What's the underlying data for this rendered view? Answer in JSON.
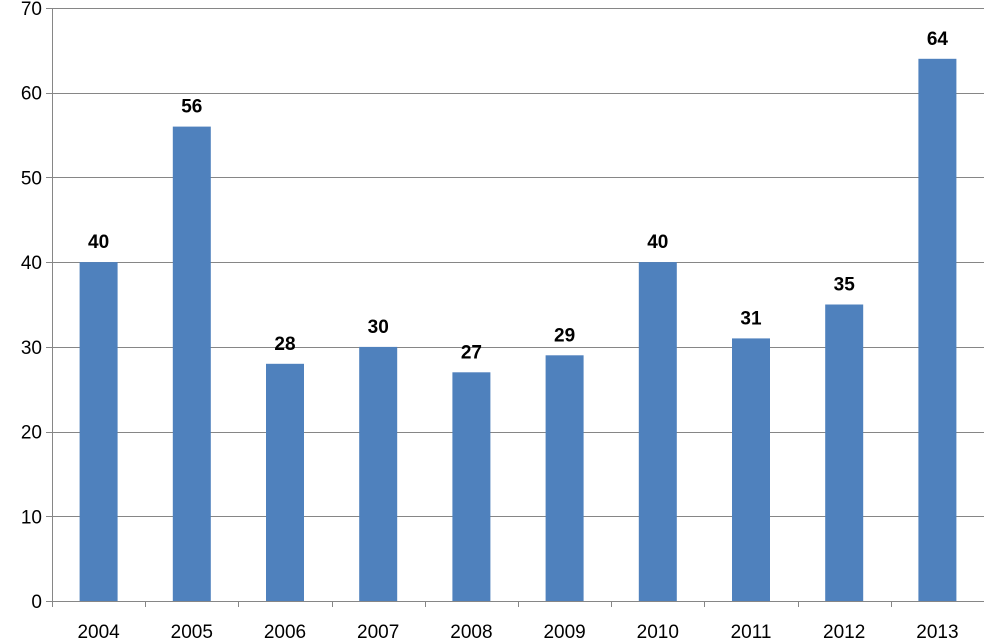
{
  "chart_data": {
    "type": "bar",
    "categories": [
      "2004",
      "2005",
      "2006",
      "2007",
      "2008",
      "2009",
      "2010",
      "2011",
      "2012",
      "2013"
    ],
    "values": [
      40,
      56,
      28,
      30,
      27,
      29,
      40,
      31,
      35,
      64
    ],
    "ylim": [
      0,
      70
    ],
    "yticks": [
      0,
      10,
      20,
      30,
      40,
      50,
      60,
      70
    ],
    "grid": true,
    "data_labels": true,
    "bar_color": "#4F81BD",
    "title": "",
    "xlabel": "",
    "ylabel": ""
  }
}
